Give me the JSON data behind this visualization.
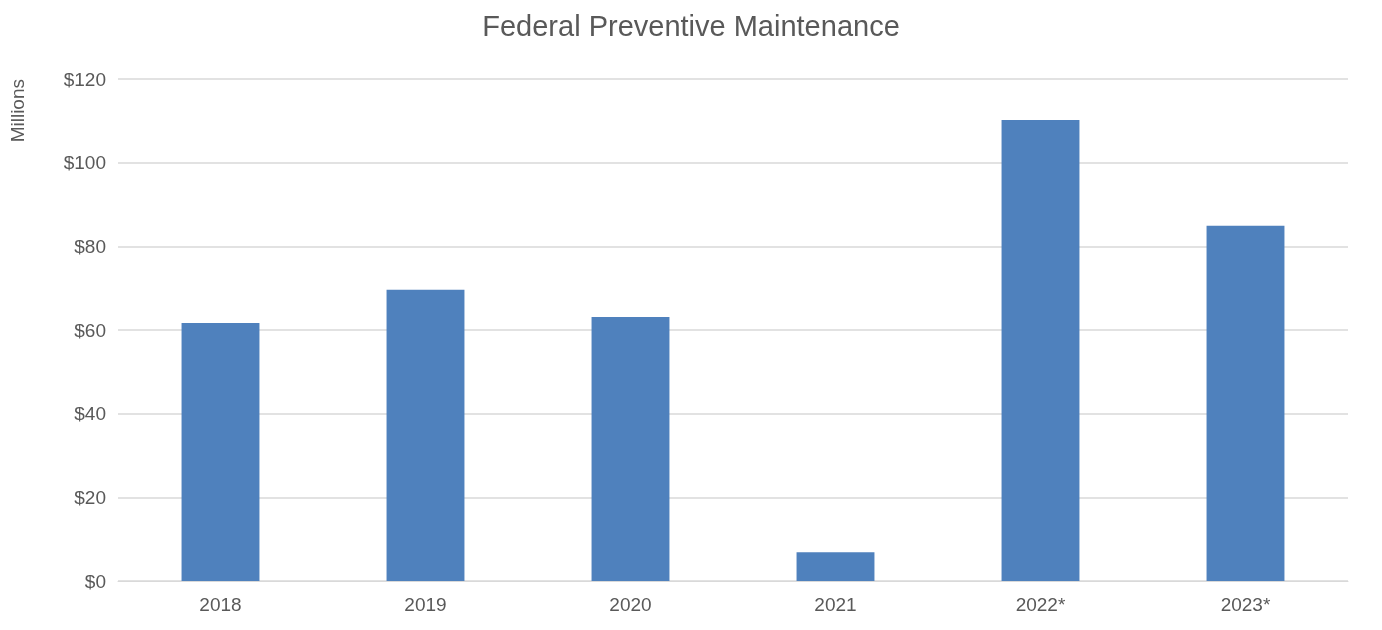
{
  "chart_data": {
    "type": "bar",
    "title": "Federal Preventive Maintenance",
    "ylabel": "Millions",
    "categories": [
      "2018",
      "2019",
      "2020",
      "2021",
      "2022*",
      "2023*"
    ],
    "values": [
      61.7,
      69.6,
      63.1,
      6.9,
      110.2,
      84.9
    ],
    "color": "#4f81bd",
    "ylim": [
      0,
      120
    ],
    "yticks": [
      {
        "value": 0,
        "label": "$0"
      },
      {
        "value": 20,
        "label": "$20"
      },
      {
        "value": 40,
        "label": "$40"
      },
      {
        "value": 60,
        "label": "$60"
      },
      {
        "value": 80,
        "label": "$80"
      },
      {
        "value": 100,
        "label": "$100"
      },
      {
        "value": 120,
        "label": "$120"
      }
    ],
    "grid": "y"
  }
}
